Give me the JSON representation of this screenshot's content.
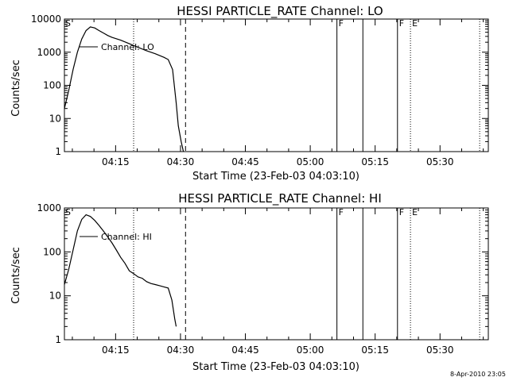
{
  "chart_data": [
    {
      "type": "line",
      "title": "HESSI PARTICLE_RATE Channel: LO",
      "xlabel": "Start Time (23-Feb-03 04:03:10)",
      "ylabel": "Counts/sec",
      "yscale": "log",
      "ylim": [
        1,
        10000
      ],
      "xlim": [
        "04:03:10",
        "04:41:10"
      ],
      "x_ticks": [
        "04:15",
        "04:30",
        "04:45",
        "05:00",
        "05:15",
        "05:30"
      ],
      "y_ticks": [
        "1",
        "10",
        "100",
        "1000",
        "10000"
      ],
      "legend": "Channel: LO",
      "series": [
        {
          "name": "Channel: LO",
          "x": [
            "04:03:10",
            "04:04:10",
            "04:05:10",
            "04:06:10",
            "04:07:10",
            "04:08:10",
            "04:09:10",
            "04:10:10",
            "04:11:10",
            "04:12:10",
            "04:13:10",
            "04:14:10",
            "04:16:10",
            "04:18:10",
            "04:20:10",
            "04:22:10",
            "04:24:10",
            "04:26:10",
            "04:27:10",
            "04:28:10",
            "04:29:00",
            "04:29:30",
            "04:30:10",
            "04:30:40"
          ],
          "y": [
            20,
            70,
            300,
            1000,
            2500,
            4500,
            5800,
            5400,
            4500,
            3800,
            3200,
            2800,
            2300,
            1800,
            1400,
            1100,
            900,
            700,
            600,
            300,
            30,
            6,
            2,
            1
          ]
        }
      ],
      "vertical_lines": [
        {
          "x": "04:19:10",
          "style": "dotted",
          "label": ""
        },
        {
          "x": "04:31:10",
          "style": "dashed",
          "label": ""
        },
        {
          "x": "05:06:10",
          "style": "solid",
          "label": "F"
        },
        {
          "x": "05:12:10",
          "style": "solid",
          "label": ""
        },
        {
          "x": "05:20:10",
          "style": "solid",
          "label": "F"
        },
        {
          "x": "05:23:10",
          "style": "dotted",
          "label": "E"
        },
        {
          "x": "05:39:10",
          "style": "dotted",
          "label": ""
        }
      ],
      "start_marker": "S"
    },
    {
      "type": "line",
      "title": "HESSI PARTICLE_RATE Channel: HI",
      "xlabel": "Start Time (23-Feb-03 04:03:10)",
      "ylabel": "Counts/sec",
      "yscale": "log",
      "ylim": [
        1,
        1000
      ],
      "x_ticks": [
        "04:15",
        "04:30",
        "04:45",
        "05:00",
        "05:15",
        "05:30"
      ],
      "y_ticks": [
        "1",
        "10",
        "100",
        "1000"
      ],
      "legend": "Channel: HI",
      "series": [
        {
          "name": "Channel: HI",
          "x": [
            "04:03:10",
            "04:04:10",
            "04:05:10",
            "04:06:10",
            "04:07:10",
            "04:08:10",
            "04:09:10",
            "04:10:10",
            "04:11:10",
            "04:12:10",
            "04:13:10",
            "04:14:10",
            "04:15:10",
            "04:16:10",
            "04:17:10",
            "04:18:10",
            "04:19:10",
            "04:20:10",
            "04:21:10",
            "04:22:10",
            "04:23:10",
            "04:24:10",
            "04:25:10",
            "04:26:10",
            "04:27:10",
            "04:28:00",
            "04:28:40",
            "04:29:00"
          ],
          "y": [
            18,
            40,
            110,
            300,
            550,
            700,
            640,
            520,
            400,
            300,
            220,
            160,
            110,
            75,
            55,
            37,
            32,
            27,
            25,
            21,
            19,
            18,
            17,
            16,
            15,
            8,
            3,
            2
          ]
        }
      ],
      "vertical_lines": [
        {
          "x": "04:19:10",
          "style": "dotted",
          "label": ""
        },
        {
          "x": "04:31:10",
          "style": "dashed",
          "label": ""
        },
        {
          "x": "05:06:10",
          "style": "solid",
          "label": "F"
        },
        {
          "x": "05:12:10",
          "style": "solid",
          "label": ""
        },
        {
          "x": "05:20:10",
          "style": "solid",
          "label": "F"
        },
        {
          "x": "05:23:10",
          "style": "dotted",
          "label": "E"
        },
        {
          "x": "05:39:10",
          "style": "dotted",
          "label": ""
        }
      ],
      "start_marker": "S"
    }
  ],
  "footer": {
    "timestamp": "8-Apr-2010 23:05"
  },
  "colors": {
    "line": "#000000",
    "background": "#ffffff"
  }
}
